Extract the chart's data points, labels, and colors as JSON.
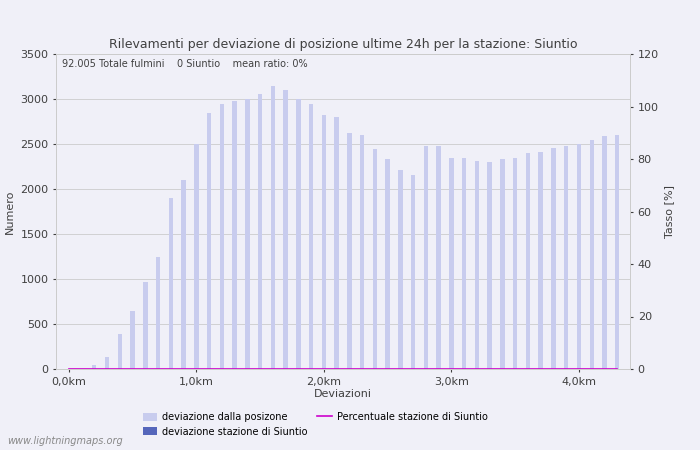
{
  "title": "Rilevamenti per deviazione di posizione ultime 24h per la stazione: Siuntio",
  "subtitle": "92.005 Totale fulmini    0 Siuntio    mean ratio: 0%",
  "xlabel": "Deviazioni",
  "ylabel_left": "Numero",
  "ylabel_right": "Tasso [%]",
  "xtick_labels": [
    "0,0km",
    "1,0km",
    "2,0km",
    "3,0km",
    "4,0km"
  ],
  "xtick_positions": [
    0,
    10,
    20,
    30,
    40
  ],
  "ylim_left": [
    0,
    3500
  ],
  "ylim_right": [
    0,
    120
  ],
  "yticks_left": [
    0,
    500,
    1000,
    1500,
    2000,
    2500,
    3000,
    3500
  ],
  "yticks_right": [
    0,
    20,
    40,
    60,
    80,
    100,
    120
  ],
  "bar_values": [
    0,
    0,
    50,
    130,
    390,
    650,
    970,
    1250,
    1900,
    2100,
    2500,
    2850,
    2950,
    2980,
    3000,
    3060,
    3150,
    3100,
    3000,
    2950,
    2820,
    2800,
    2620,
    2600,
    2450,
    2330,
    2210,
    2160,
    2480,
    2480,
    2340,
    2340,
    2310,
    2300,
    2330,
    2340,
    2400,
    2410,
    2460,
    2480,
    2500,
    2550,
    2590,
    2600
  ],
  "station_values": [
    0,
    0,
    0,
    0,
    0,
    0,
    0,
    0,
    0,
    0,
    0,
    0,
    0,
    0,
    0,
    0,
    0,
    0,
    0,
    0,
    0,
    0,
    0,
    0,
    0,
    0,
    0,
    0,
    0,
    0,
    0,
    0,
    0,
    0,
    0,
    0,
    0,
    0,
    0,
    0,
    0,
    0,
    0,
    0
  ],
  "ratio_values": [
    0,
    0,
    0,
    0,
    0,
    0,
    0,
    0,
    0,
    0,
    0,
    0,
    0,
    0,
    0,
    0,
    0,
    0,
    0,
    0,
    0,
    0,
    0,
    0,
    0,
    0,
    0,
    0,
    0,
    0,
    0,
    0,
    0,
    0,
    0,
    0,
    0,
    0,
    0,
    0,
    0,
    0,
    0,
    0
  ],
  "bar_color_light": "#c8ccee",
  "bar_color_dark": "#5566bb",
  "line_color": "#cc00cc",
  "bg_color": "#f0f0f8",
  "grid_color": "#cccccc",
  "text_color": "#404040",
  "watermark": "www.lightningmaps.org",
  "legend_labels": [
    "deviazione dalla posizone",
    "deviazione stazione di Siuntio",
    "Percentuale stazione di Siuntio"
  ],
  "n_bars": 44,
  "bar_width": 0.35,
  "font_size": 8,
  "title_font_size": 9
}
